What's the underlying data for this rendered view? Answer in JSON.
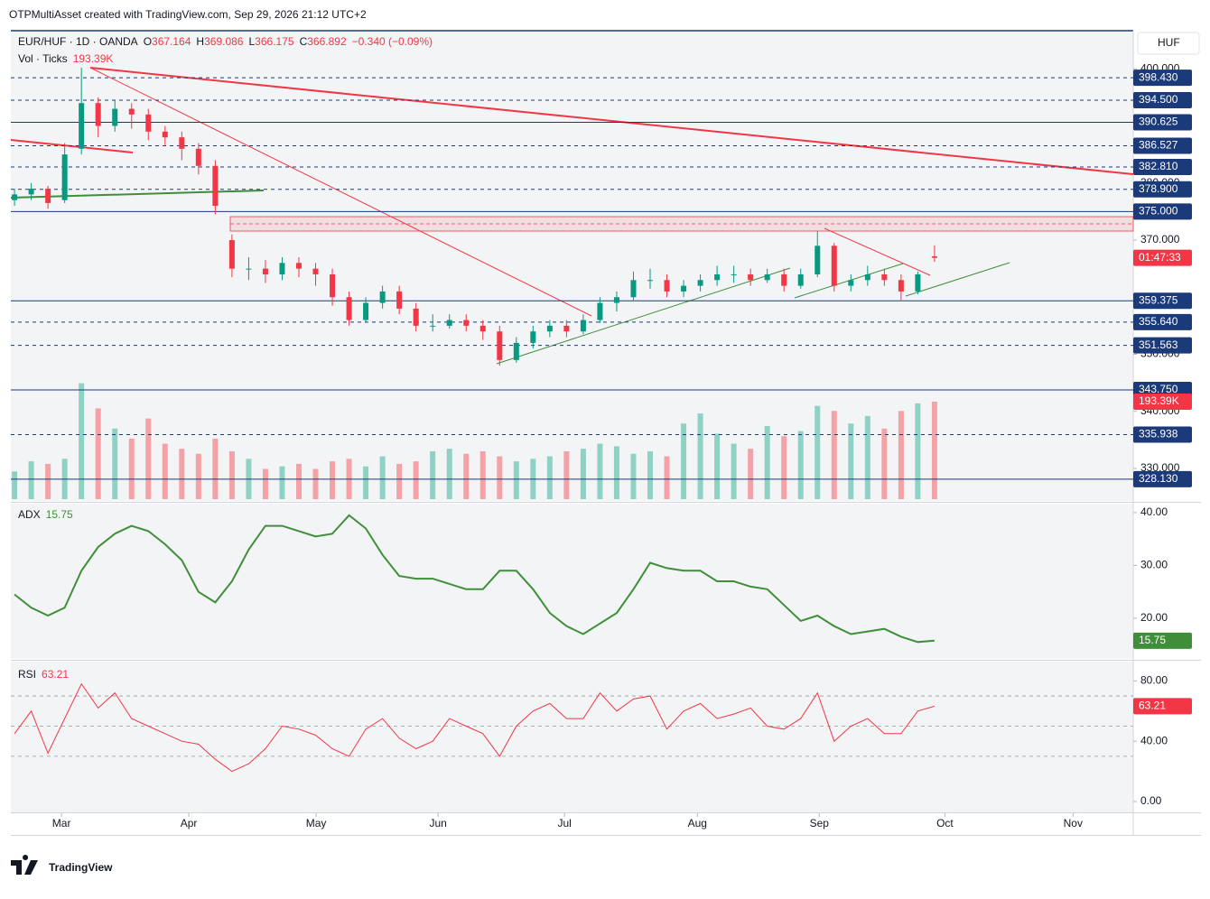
{
  "header": {
    "credit": "OTPMultiAsset created with TradingView.com, Sep 29, 2026 21:12 UTC+2",
    "symbol": "EUR/HUF · 1D · OANDA",
    "o_label": "O",
    "h_label": "H",
    "l_label": "L",
    "c_label": "C",
    "change": "−0.340 (−0.09%)",
    "volume_label": "Vol · Ticks",
    "currency": "HUF",
    "countdown": "01:47:33"
  },
  "logo": "TradingView",
  "chart_data": [
    {
      "type": "candlestick",
      "x": [
        0,
        1,
        2,
        3,
        4,
        5,
        6,
        7,
        8,
        9,
        10,
        11,
        12,
        13,
        14,
        15,
        16,
        17,
        18,
        19,
        20,
        21,
        22,
        23,
        24,
        25,
        26,
        27,
        28,
        29,
        30,
        31,
        32,
        33,
        34,
        35,
        36,
        37,
        38,
        39,
        40,
        41,
        42,
        43,
        44,
        45,
        46,
        47,
        48,
        49,
        50,
        51,
        52,
        53,
        54,
        55
      ],
      "open": [
        377,
        378,
        379,
        377,
        386,
        394,
        390,
        393,
        392,
        389,
        388,
        386,
        383,
        370,
        365,
        365,
        364,
        366,
        365,
        364,
        360,
        356,
        359,
        361,
        358,
        355,
        355,
        356,
        355,
        354,
        349,
        352,
        354,
        355,
        354,
        356,
        359,
        360,
        363,
        363,
        361,
        362,
        363,
        364,
        364,
        363,
        364,
        362,
        364,
        369,
        362,
        363,
        364,
        363,
        361,
        367.164
      ],
      "high": [
        379,
        380,
        379.5,
        387,
        400.2,
        395,
        394.5,
        394,
        393,
        390,
        389,
        387,
        384,
        371,
        367,
        366.5,
        367,
        367,
        366,
        365,
        361,
        360,
        362,
        362,
        359,
        357,
        357,
        357,
        356,
        355,
        353,
        355,
        356,
        356,
        357,
        360,
        361,
        364.5,
        365,
        364,
        363,
        364,
        365.5,
        365.5,
        365,
        365,
        365,
        365,
        371.5,
        369.5,
        364,
        365.5,
        365,
        364,
        364.5,
        369.086
      ],
      "low": [
        376,
        377,
        375.5,
        376.5,
        385,
        388,
        389,
        389.5,
        387.5,
        386.5,
        384,
        381.5,
        374.5,
        363.5,
        363,
        362.5,
        363,
        363.5,
        362,
        358.5,
        355,
        355.5,
        358,
        357,
        354,
        354,
        354.5,
        354,
        352.5,
        348,
        348.5,
        351,
        353,
        353,
        353.5,
        355.5,
        357.5,
        359.5,
        361.5,
        360,
        360,
        361,
        362,
        362.5,
        362,
        362.5,
        361,
        361.5,
        363.5,
        361,
        361,
        362,
        362,
        359.5,
        360.5,
        366.175
      ],
      "close": [
        378,
        379,
        376.5,
        385,
        394,
        390,
        393,
        392,
        389,
        388,
        386,
        383,
        376,
        365,
        365,
        364,
        366,
        365,
        364,
        360,
        356,
        359,
        361,
        358,
        355,
        355,
        356,
        355,
        354,
        349,
        352,
        354,
        355,
        354,
        356,
        359,
        360,
        363,
        363,
        361,
        362,
        363,
        364,
        364,
        363,
        364,
        362,
        364,
        369,
        362,
        363,
        364,
        363,
        361,
        364,
        366.892
      ],
      "up_color": "#089981",
      "down_color": "#f23645",
      "xlim": [
        -0.22,
        66.88
      ],
      "xticks": [
        {
          "value": 2.81,
          "label": "Mar"
        },
        {
          "value": 10.42,
          "label": "Apr"
        },
        {
          "value": 18.03,
          "label": "May"
        },
        {
          "value": 25.32,
          "label": "Jun"
        },
        {
          "value": 32.88,
          "label": "Jul"
        },
        {
          "value": 40.82,
          "label": "Aug"
        },
        {
          "value": 48.11,
          "label": "Sep"
        },
        {
          "value": 55.62,
          "label": "Oct"
        },
        {
          "value": 63.28,
          "label": "Nov"
        }
      ],
      "ylim": [
        324.31,
        406.68
      ],
      "yticks": [
        {
          "value": 400,
          "label": "400.000"
        },
        {
          "value": 380,
          "label": "380.000"
        },
        {
          "value": 370,
          "label": "370.000"
        },
        {
          "value": 350,
          "label": "350.000"
        },
        {
          "value": 340,
          "label": "340.000"
        },
        {
          "value": 330,
          "label": "330.000"
        }
      ],
      "grid": false,
      "levels": [
        {
          "value": 398.43,
          "label": "398.430",
          "style": "dashed"
        },
        {
          "value": 394.5,
          "label": "394.500",
          "style": "dashed"
        },
        {
          "value": 390.625,
          "label": "390.625",
          "style": "solid"
        },
        {
          "value": 386.527,
          "label": "386.527",
          "style": "dashed"
        },
        {
          "value": 382.81,
          "label": "382.810",
          "style": "dashed"
        },
        {
          "value": 378.9,
          "label": "378.900",
          "style": "dashed"
        },
        {
          "value": 375,
          "label": "375.000",
          "style": "solid"
        },
        {
          "value": 359.375,
          "label": "359.375",
          "style": "solid"
        },
        {
          "value": 355.64,
          "label": "355.640",
          "style": "dashed"
        },
        {
          "value": 351.563,
          "label": "351.563",
          "style": "dashed"
        },
        {
          "value": 343.75,
          "label": "343.750",
          "style": "solid"
        },
        {
          "value": 335.938,
          "label": "335.938",
          "style": "dashed"
        },
        {
          "value": 328.13,
          "label": "328.130",
          "style": "solid"
        }
      ],
      "level_color": "#1b3a7a",
      "volume": {
        "values": [
          55,
          75,
          70,
          80,
          230,
          180,
          140,
          120,
          160,
          110,
          100,
          90,
          120,
          95,
          80,
          60,
          65,
          70,
          60,
          75,
          80,
          65,
          85,
          70,
          75,
          95,
          100,
          90,
          95,
          85,
          75,
          80,
          85,
          95,
          100,
          110,
          105,
          90,
          95,
          85,
          150,
          170,
          130,
          110,
          100,
          145,
          125,
          135,
          185,
          175,
          150,
          165,
          140,
          175,
          190,
          193.39
        ],
        "last_value_label": "193.39K",
        "ylim": [
          0,
          274
        ],
        "up_color": "#8fd1c5",
        "down_color": "#f3a2a7"
      }
    },
    {
      "type": "line",
      "name": "ADX",
      "color": "#3f8f3a",
      "values": [
        24.5,
        22,
        20.5,
        22,
        29,
        33.5,
        36,
        37.5,
        36.5,
        34,
        31,
        25,
        23,
        27,
        33,
        37.5,
        37.5,
        36.5,
        35.5,
        36,
        39.5,
        37,
        32,
        28,
        27.5,
        27.5,
        26.5,
        25.5,
        25.5,
        29,
        29,
        25.5,
        21,
        18.5,
        17,
        19,
        21,
        25.5,
        30.5,
        29.5,
        29,
        29,
        27,
        27,
        26,
        25.5,
        22.5,
        19.5,
        20.5,
        18.5,
        17,
        17.5,
        18,
        16.5,
        15.5,
        15.75
      ],
      "ylim": [
        12.3,
        41.7
      ],
      "yticks": [
        {
          "value": 20,
          "label": "20.00"
        },
        {
          "value": 30,
          "label": "30.00"
        },
        {
          "value": 40,
          "label": "40.00"
        }
      ]
    },
    {
      "type": "line",
      "name": "RSI",
      "color": "#f23645",
      "values": [
        45,
        60,
        32,
        55,
        78,
        62,
        72,
        55,
        50,
        45,
        40,
        38,
        28,
        20,
        25,
        35,
        50,
        48,
        44,
        35,
        30,
        48,
        55,
        42,
        35,
        40,
        55,
        50,
        45,
        30,
        50,
        60,
        65,
        55,
        55,
        72,
        60,
        68,
        70,
        48,
        60,
        65,
        55,
        58,
        62,
        50,
        48,
        55,
        72,
        40,
        50,
        55,
        45,
        45,
        60,
        63.21
      ],
      "ylim": [
        -7.2,
        92.8
      ],
      "yticks": [
        {
          "value": 0,
          "label": "0.00"
        },
        {
          "value": 40,
          "label": "40.00"
        },
        {
          "value": 80,
          "label": "80.00"
        }
      ],
      "bands": [
        30,
        50,
        70
      ]
    }
  ]
}
